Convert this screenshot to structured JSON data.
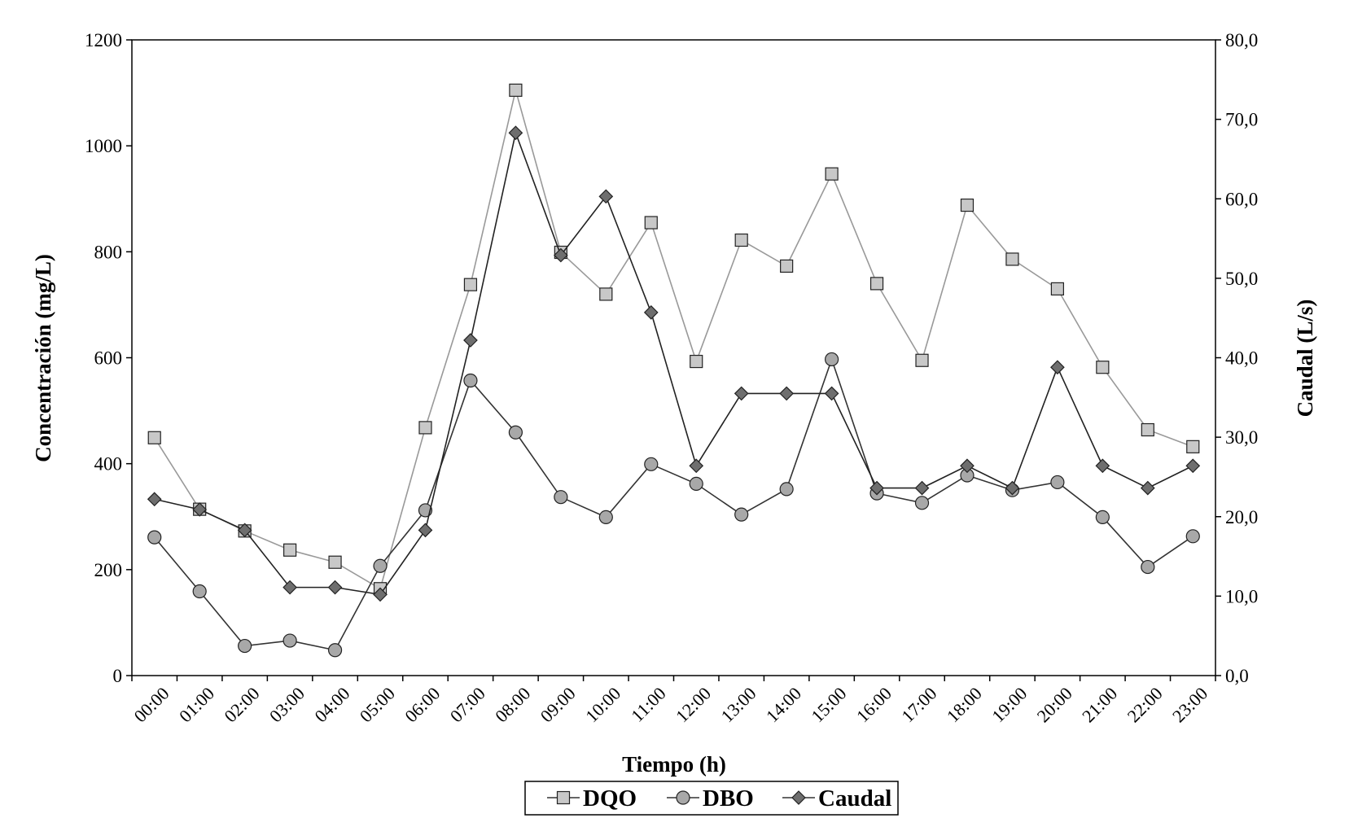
{
  "chart_data": {
    "type": "line",
    "xlabel": "Tiempo (h)",
    "ylabel": "Concentración (mg/L)",
    "y2label": "Caudal (L/s)",
    "categories": [
      "00:00",
      "01:00",
      "02:00",
      "03:00",
      "04:00",
      "05:00",
      "06:00",
      "07:00",
      "08:00",
      "09:00",
      "10:00",
      "11:00",
      "12:00",
      "13:00",
      "14:00",
      "15:00",
      "16:00",
      "17:00",
      "18:00",
      "19:00",
      "20:00",
      "21:00",
      "22:00",
      "23:00"
    ],
    "ylim": [
      0,
      1200
    ],
    "yticks": [
      "0",
      "200",
      "400",
      "600",
      "800",
      "1000",
      "1200"
    ],
    "y2lim": [
      0,
      80
    ],
    "y2ticks": [
      "0,0",
      "10,0",
      "20,0",
      "30,0",
      "40,0",
      "50,0",
      "60,0",
      "70,0",
      "80,0"
    ],
    "grid": false,
    "legend_position": "bottom-center",
    "series": [
      {
        "name": "DQO",
        "axis": "left",
        "marker": "square",
        "fill": "#c8c8c8",
        "line": "#999999",
        "values": [
          449,
          314,
          273,
          237,
          214,
          164,
          468,
          738,
          1105,
          799,
          720,
          855,
          593,
          822,
          773,
          947,
          740,
          595,
          888,
          786,
          730,
          582,
          464,
          432
        ]
      },
      {
        "name": "DBO",
        "axis": "left",
        "marker": "circle",
        "fill": "#a8a8a8",
        "line": "#333333",
        "values": [
          261,
          159,
          56,
          66,
          48,
          207,
          312,
          557,
          459,
          337,
          299,
          399,
          362,
          304,
          352,
          597,
          344,
          326,
          378,
          350,
          365,
          299,
          205,
          263
        ]
      },
      {
        "name": "Caudal",
        "axis": "right",
        "marker": "diamond",
        "fill": "#6e6e6e",
        "line": "#222222",
        "values": [
          22.2,
          20.9,
          18.3,
          11.1,
          11.1,
          10.2,
          18.3,
          42.2,
          68.3,
          52.9,
          60.3,
          45.7,
          26.4,
          35.5,
          35.5,
          35.5,
          23.6,
          23.6,
          26.4,
          23.6,
          38.8,
          26.4,
          23.6,
          26.4
        ]
      }
    ]
  }
}
